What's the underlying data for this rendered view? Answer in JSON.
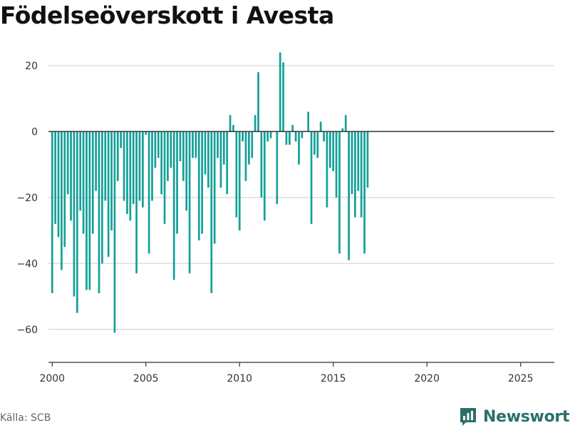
{
  "title": "Födelseöverskott i Avesta",
  "source": "Källa: SCB",
  "brand": {
    "name": "Newsworthy",
    "icon": "newsworthy-logo-icon",
    "color": "#2b6f6a"
  },
  "colors": {
    "bar": "#14a098",
    "grid": "#dddddd",
    "zero_line": "#333333"
  },
  "chart_data": {
    "type": "bar",
    "title": "Födelseöverskott i Avesta",
    "xlabel": "",
    "ylabel": "",
    "x_ticks": [
      2000,
      2005,
      2010,
      2015,
      2020,
      2025
    ],
    "y_ticks": [
      20,
      0,
      -20,
      -40,
      -60
    ],
    "y_tick_labels": [
      "20",
      "0",
      "−20",
      "−40",
      "−60"
    ],
    "xlim": [
      1999.8,
      2026.8
    ],
    "ylim": [
      -70,
      28
    ],
    "grid": true,
    "series": [
      {
        "start_year": 2000,
        "interval": "month",
        "step_months": 2,
        "values": [
          -49,
          -28,
          -32,
          -42,
          -35,
          -19,
          -27,
          -50,
          -55,
          -24,
          -31,
          -48,
          -48,
          -31,
          -18,
          -49,
          -40,
          -21,
          -38,
          -30,
          -61,
          -15,
          -5,
          -21,
          -25,
          -27,
          -22,
          -43,
          -21,
          -23,
          -1,
          -37,
          -21,
          -11,
          -8,
          -19,
          -28,
          -15,
          -11,
          -45,
          -31,
          -9,
          -15,
          -24,
          -43,
          -8,
          -8,
          -33,
          -31,
          -13,
          -17,
          -49,
          -34,
          -8,
          -17,
          -10,
          -19,
          5,
          2,
          -26,
          -30,
          -3,
          -15,
          -10,
          -8,
          5,
          18,
          -20,
          -27,
          -3,
          -2,
          0,
          -22,
          24,
          21,
          -4,
          -4,
          2,
          -3,
          -10,
          -2,
          0,
          6,
          -28,
          -7,
          -8,
          3,
          -3,
          -23,
          -11,
          -12,
          -20,
          -37,
          1,
          5,
          -39,
          -19,
          -26,
          -18,
          -26,
          -37,
          -17
        ]
      }
    ]
  }
}
